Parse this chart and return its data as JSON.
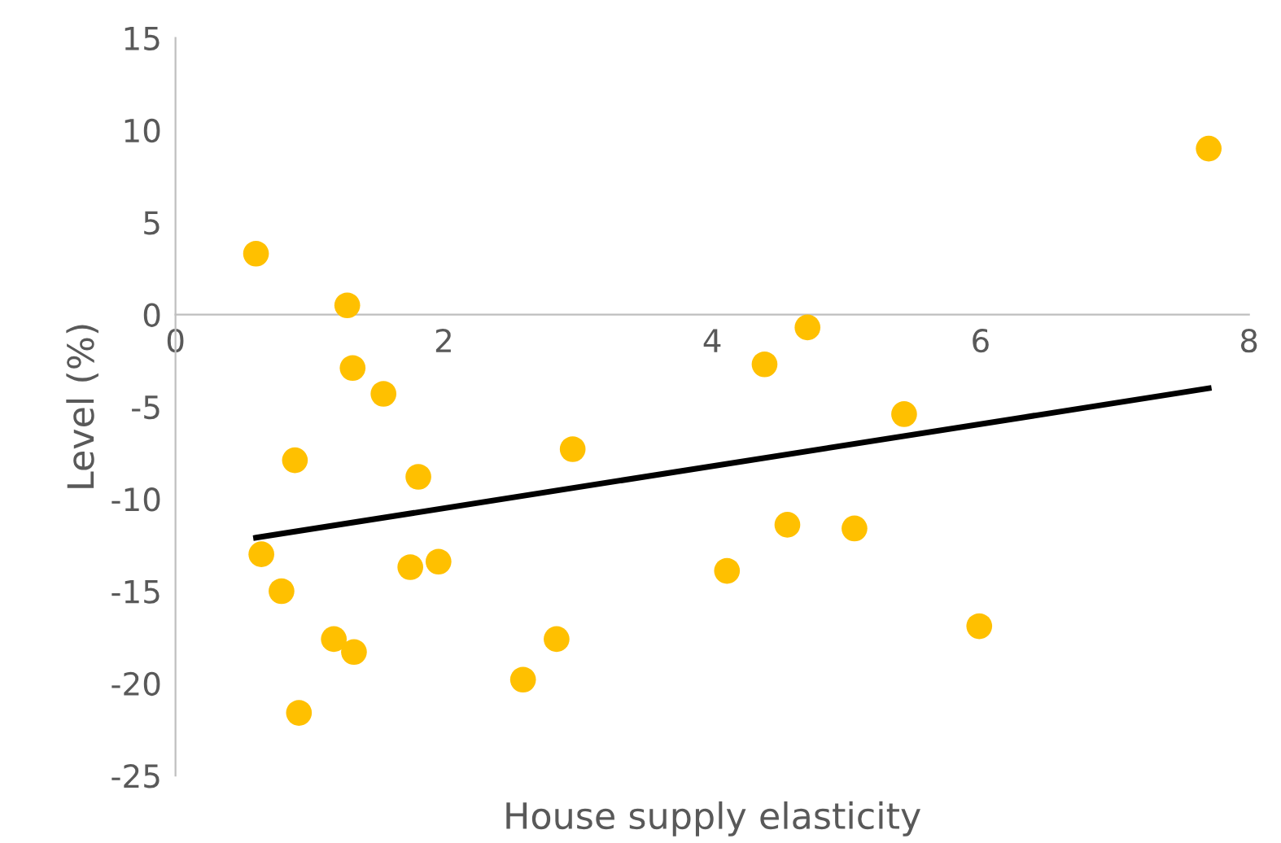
{
  "chart_data": {
    "type": "scatter",
    "xlabel": "House supply elasticity",
    "ylabel": "Level (%)",
    "xlim": [
      0,
      8
    ],
    "xticks": [
      0,
      2,
      4,
      6,
      8
    ],
    "ylim": [
      -25,
      15
    ],
    "yticks": [
      -25,
      -20,
      -15,
      -10,
      -5,
      0,
      5,
      10,
      15
    ],
    "grid": false,
    "legend": false,
    "marker": "circle",
    "series": [
      {
        "color": "#ffc000",
        "x": [
          0.6,
          1.28,
          1.32,
          1.55,
          0.89,
          1.81,
          2.96,
          0.64,
          0.79,
          1.75,
          1.96,
          1.18,
          1.33,
          0.92,
          2.59,
          2.84,
          4.11,
          4.39,
          4.71,
          4.56,
          5.06,
          5.43,
          5.99,
          7.7
        ],
        "values": [
          3.3,
          0.5,
          -2.9,
          -4.3,
          -7.9,
          -8.8,
          -7.3,
          -13.0,
          -15.0,
          -13.7,
          -13.4,
          -17.6,
          -18.3,
          -21.6,
          -19.8,
          -17.6,
          -13.9,
          -2.7,
          -0.7,
          -11.4,
          -11.6,
          -5.4,
          -16.9,
          9.0
        ]
      },
      {
        "type": "line",
        "color": "#000000",
        "marker": "none",
        "x": [
          0.6,
          7.7
        ],
        "values": [
          -12.1,
          -4.0
        ]
      }
    ]
  }
}
